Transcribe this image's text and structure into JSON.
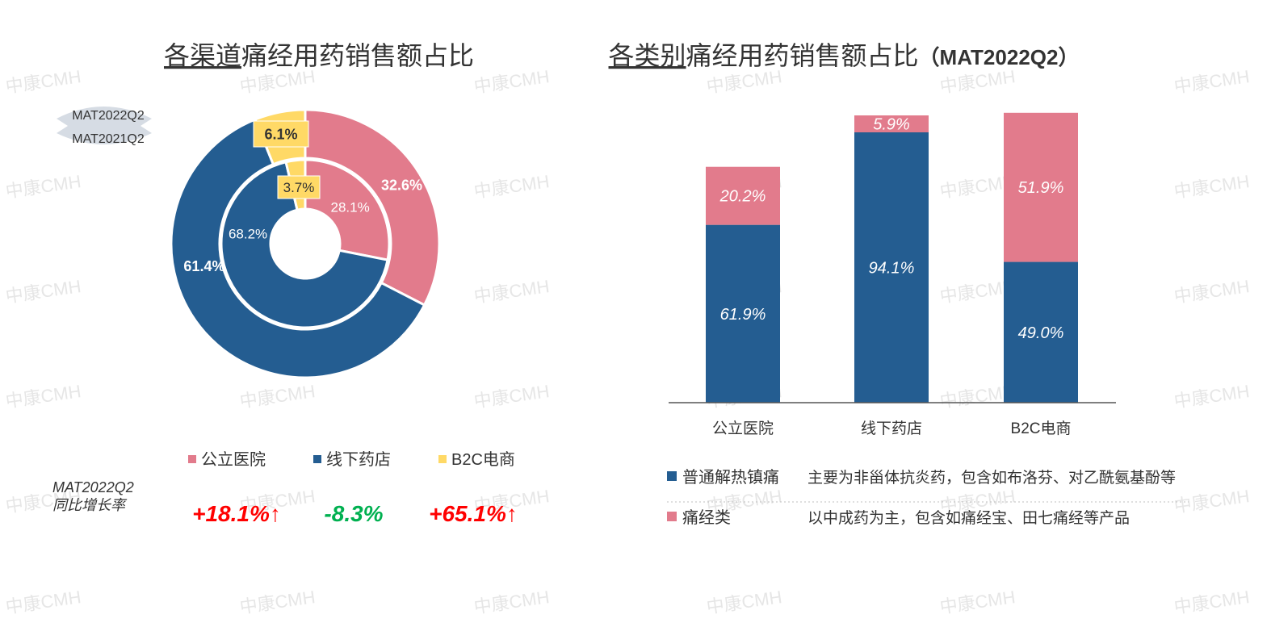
{
  "watermark": "中康CMH",
  "left_panel": {
    "title_underlined": "各渠道",
    "title_rest": "痛经用药销售额占比",
    "ring_legend": {
      "outer": "MAT2022Q2",
      "inner": "MAT2021Q2"
    },
    "growth": {
      "label_line1": "MAT2022Q2",
      "label_line2": "同比增长率",
      "values": [
        {
          "text": "+18.1%↑",
          "color": "#ff0000"
        },
        {
          "text": "-8.3%",
          "color": "#00b050"
        },
        {
          "text": "+65.1%↑",
          "color": "#ff0000"
        }
      ]
    }
  },
  "right_panel": {
    "title_underlined": "各类别",
    "title_rest": "痛经用药销售额占比",
    "title_suffix": "（MAT2022Q2）",
    "descriptions": [
      {
        "name": "普通解热镇痛",
        "text": "主要为非甾体抗炎药，包含如布洛芬、对乙酰氨基酚等",
        "color": "#245d91"
      },
      {
        "name": "痛经类",
        "text": "以中成药为主，包含如痛经宝、田七痛经等产品",
        "color": "#e27b8c"
      }
    ]
  },
  "chart_data": [
    {
      "type": "pie",
      "subtype": "donut",
      "categories": [
        "公立医院",
        "线下药店",
        "B2C电商"
      ],
      "colors": [
        "#e27b8c",
        "#245d91",
        "#ffd966"
      ],
      "series": [
        {
          "name": "MAT2022Q2",
          "ring": "outer",
          "values": [
            32.6,
            61.4,
            6.1
          ],
          "labels": [
            "32.6%",
            "61.4%",
            "6.1%"
          ]
        },
        {
          "name": "MAT2021Q2",
          "ring": "inner",
          "values": [
            28.1,
            68.2,
            3.7
          ],
          "labels": [
            "28.1%",
            "68.2%",
            "3.7%"
          ]
        }
      ],
      "legend": "bottom",
      "grid": false
    },
    {
      "type": "bar",
      "stacked": true,
      "categories": [
        "公立医院",
        "线下药店",
        "B2C电商"
      ],
      "series": [
        {
          "name": "普通解热镇痛",
          "color": "#245d91",
          "values": [
            61.9,
            94.1,
            49.0
          ],
          "labels": [
            "61.9%",
            "94.1%",
            "49.0%"
          ]
        },
        {
          "name": "痛经类",
          "color": "#e27b8c",
          "values": [
            20.2,
            5.9,
            51.9
          ],
          "labels": [
            "20.2%",
            "5.9%",
            "51.9%"
          ]
        }
      ],
      "ylim": [
        0,
        100
      ],
      "xlabel": "",
      "ylabel": "",
      "legend": "bottom",
      "grid": false
    }
  ]
}
